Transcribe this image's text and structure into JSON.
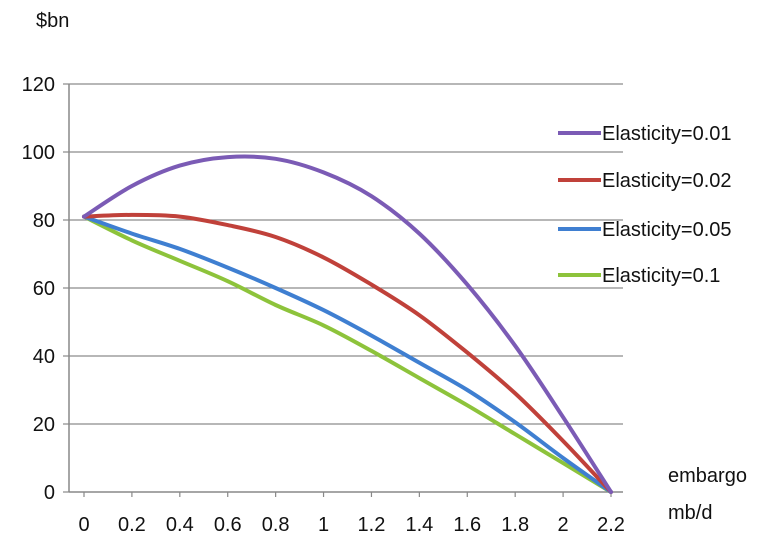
{
  "chart_data": {
    "type": "line",
    "title": "",
    "ylabel": "$bn",
    "xlabel": [
      "embargo",
      "mb/d"
    ],
    "xlim": [
      0,
      2.2
    ],
    "ylim": [
      0,
      120
    ],
    "xticks": [
      "0",
      "0.2",
      "0.4",
      "0.6",
      "0.8",
      "1",
      "1.2",
      "1.4",
      "1.6",
      "1.8",
      "2",
      "2.2"
    ],
    "yticks": [
      "0",
      "20",
      "40",
      "60",
      "80",
      "100",
      "120"
    ],
    "grid": "horizontal",
    "legend_position": "right",
    "x": [
      0,
      0.2,
      0.4,
      0.6,
      0.8,
      1.0,
      1.2,
      1.4,
      1.6,
      1.8,
      2.0,
      2.2
    ],
    "series": [
      {
        "name": "Elasticity=0.01",
        "color": "#7b5bb5",
        "values": [
          81,
          90,
          96,
          98.5,
          98,
          94,
          87,
          76,
          61,
          43,
          22,
          0
        ]
      },
      {
        "name": "Elasticity=0.02",
        "color": "#c0413a",
        "values": [
          81,
          81.5,
          81,
          78.5,
          75,
          69,
          61,
          52,
          41,
          29,
          15,
          0
        ]
      },
      {
        "name": "Elasticity=0.05",
        "color": "#3f7fd1",
        "values": [
          81,
          76,
          71.5,
          66,
          60,
          53.5,
          46,
          38,
          30,
          20.5,
          10,
          0
        ]
      },
      {
        "name": "Elasticity=0.1",
        "color": "#8dc33b",
        "values": [
          81,
          74,
          68,
          62,
          55,
          49,
          41.5,
          33.5,
          25.5,
          17,
          8.5,
          0
        ]
      }
    ]
  }
}
